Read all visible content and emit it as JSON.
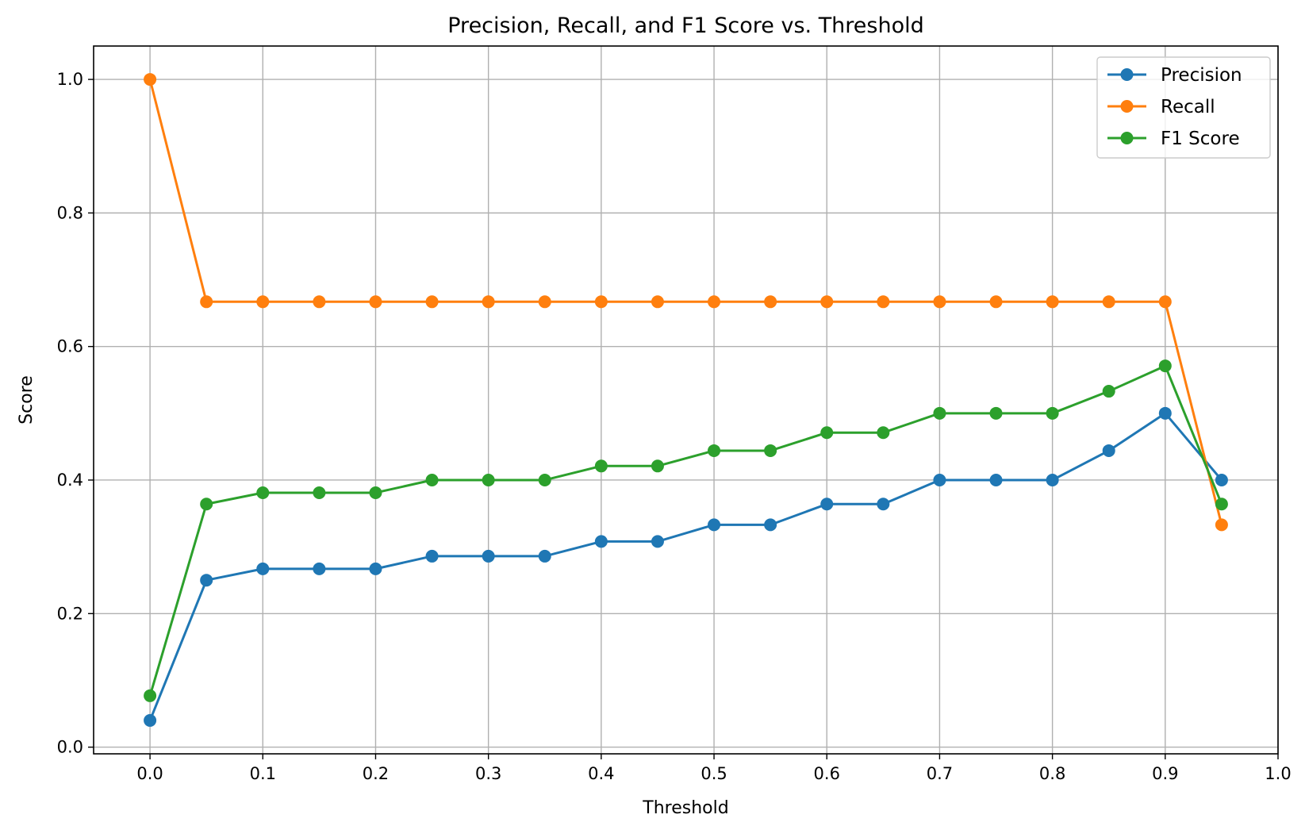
{
  "chart_data": {
    "type": "line",
    "title": "Precision, Recall, and F1 Score vs. Threshold",
    "xlabel": "Threshold",
    "ylabel": "Score",
    "xlim": [
      -0.05,
      1.0
    ],
    "ylim": [
      -0.01,
      1.05
    ],
    "x_ticks": [
      0.0,
      0.1,
      0.2,
      0.3,
      0.4,
      0.5,
      0.6,
      0.7,
      0.8,
      0.9,
      1.0
    ],
    "x_tick_labels": [
      "0.0",
      "0.1",
      "0.2",
      "0.3",
      "0.4",
      "0.5",
      "0.6",
      "0.7",
      "0.8",
      "0.9",
      "1.0"
    ],
    "y_ticks": [
      0.0,
      0.2,
      0.4,
      0.6,
      0.8,
      1.0
    ],
    "y_tick_labels": [
      "0.0",
      "0.2",
      "0.4",
      "0.6",
      "0.8",
      "1.0"
    ],
    "grid": true,
    "legend_position": "top-right",
    "x": [
      0.0,
      0.05,
      0.1,
      0.15,
      0.2,
      0.25,
      0.3,
      0.35,
      0.4,
      0.45,
      0.5,
      0.55,
      0.6,
      0.65,
      0.7,
      0.75,
      0.8,
      0.85,
      0.9,
      0.95
    ],
    "series": [
      {
        "name": "Precision",
        "color": "#1f77b4",
        "values": [
          0.04,
          0.25,
          0.267,
          0.267,
          0.267,
          0.286,
          0.286,
          0.286,
          0.308,
          0.308,
          0.333,
          0.333,
          0.364,
          0.364,
          0.4,
          0.4,
          0.4,
          0.444,
          0.5,
          0.4
        ]
      },
      {
        "name": "Recall",
        "color": "#ff7f0e",
        "values": [
          1.0,
          0.667,
          0.667,
          0.667,
          0.667,
          0.667,
          0.667,
          0.667,
          0.667,
          0.667,
          0.667,
          0.667,
          0.667,
          0.667,
          0.667,
          0.667,
          0.667,
          0.667,
          0.667,
          0.333
        ]
      },
      {
        "name": "F1 Score",
        "color": "#2ca02c",
        "values": [
          0.077,
          0.364,
          0.381,
          0.381,
          0.381,
          0.4,
          0.4,
          0.4,
          0.421,
          0.421,
          0.444,
          0.444,
          0.471,
          0.471,
          0.5,
          0.5,
          0.5,
          0.533,
          0.571,
          0.364
        ]
      }
    ]
  }
}
